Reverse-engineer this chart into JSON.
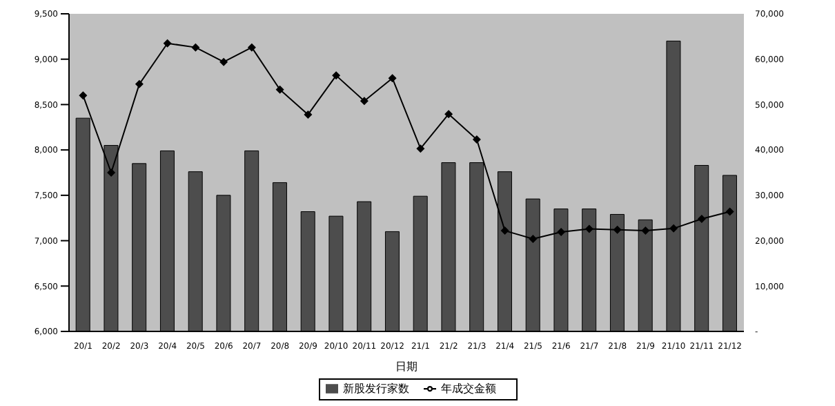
{
  "chart_data": {
    "type": "bar",
    "categories": [
      "20/1",
      "20/2",
      "20/3",
      "20/4",
      "20/5",
      "20/6",
      "20/7",
      "20/8",
      "20/9",
      "20/10",
      "20/11",
      "20/12",
      "21/1",
      "21/2",
      "21/3",
      "21/4",
      "21/5",
      "21/6",
      "21/7",
      "21/8",
      "21/9",
      "21/10",
      "21/11",
      "21/12"
    ],
    "xlabel": "日期",
    "series": [
      {
        "name": "新股发行家数",
        "color": "#4d4d4d",
        "values": [
          8350,
          8050,
          7850,
          7990,
          7760,
          7500,
          7990,
          7640,
          7320,
          7270,
          7430,
          7100,
          7490,
          7860,
          7860,
          7760,
          7460,
          7350,
          7350,
          7290,
          7230,
          9200,
          7830,
          7720
        ]
      },
      {
        "name": "年成交金额",
        "type": "line",
        "axis": "y2",
        "color": "#000000",
        "marker": "diamond",
        "values": [
          52000,
          35000,
          54500,
          63500,
          62600,
          59400,
          62600,
          53300,
          47800,
          56400,
          50800,
          55800,
          40300,
          47900,
          42300,
          22200,
          20400,
          21900,
          22600,
          22400,
          22200,
          22700,
          24800,
          26400
        ]
      }
    ],
    "ylim": [
      6000,
      9500
    ],
    "yticks": [
      {
        "value": 6000,
        "label": "6,000"
      },
      {
        "value": 6500,
        "label": "6,500"
      },
      {
        "value": 7000,
        "label": "7,000"
      },
      {
        "value": 7500,
        "label": "7,500"
      },
      {
        "value": 8000,
        "label": "8,000"
      },
      {
        "value": 8500,
        "label": "8,500"
      },
      {
        "value": 9000,
        "label": "9,000"
      },
      {
        "value": 9500,
        "label": "9,500"
      }
    ],
    "y2lim": [
      0,
      70000
    ],
    "y2ticks": [
      {
        "value": 0,
        "label": "-"
      },
      {
        "value": 10000,
        "label": "10,000"
      },
      {
        "value": 20000,
        "label": "20,000"
      },
      {
        "value": 30000,
        "label": "30,000"
      },
      {
        "value": 40000,
        "label": "40,000"
      },
      {
        "value": 50000,
        "label": "50,000"
      },
      {
        "value": 60000,
        "label": "60,000"
      },
      {
        "value": 70000,
        "label": "70,000"
      }
    ],
    "legend": "bottom"
  }
}
